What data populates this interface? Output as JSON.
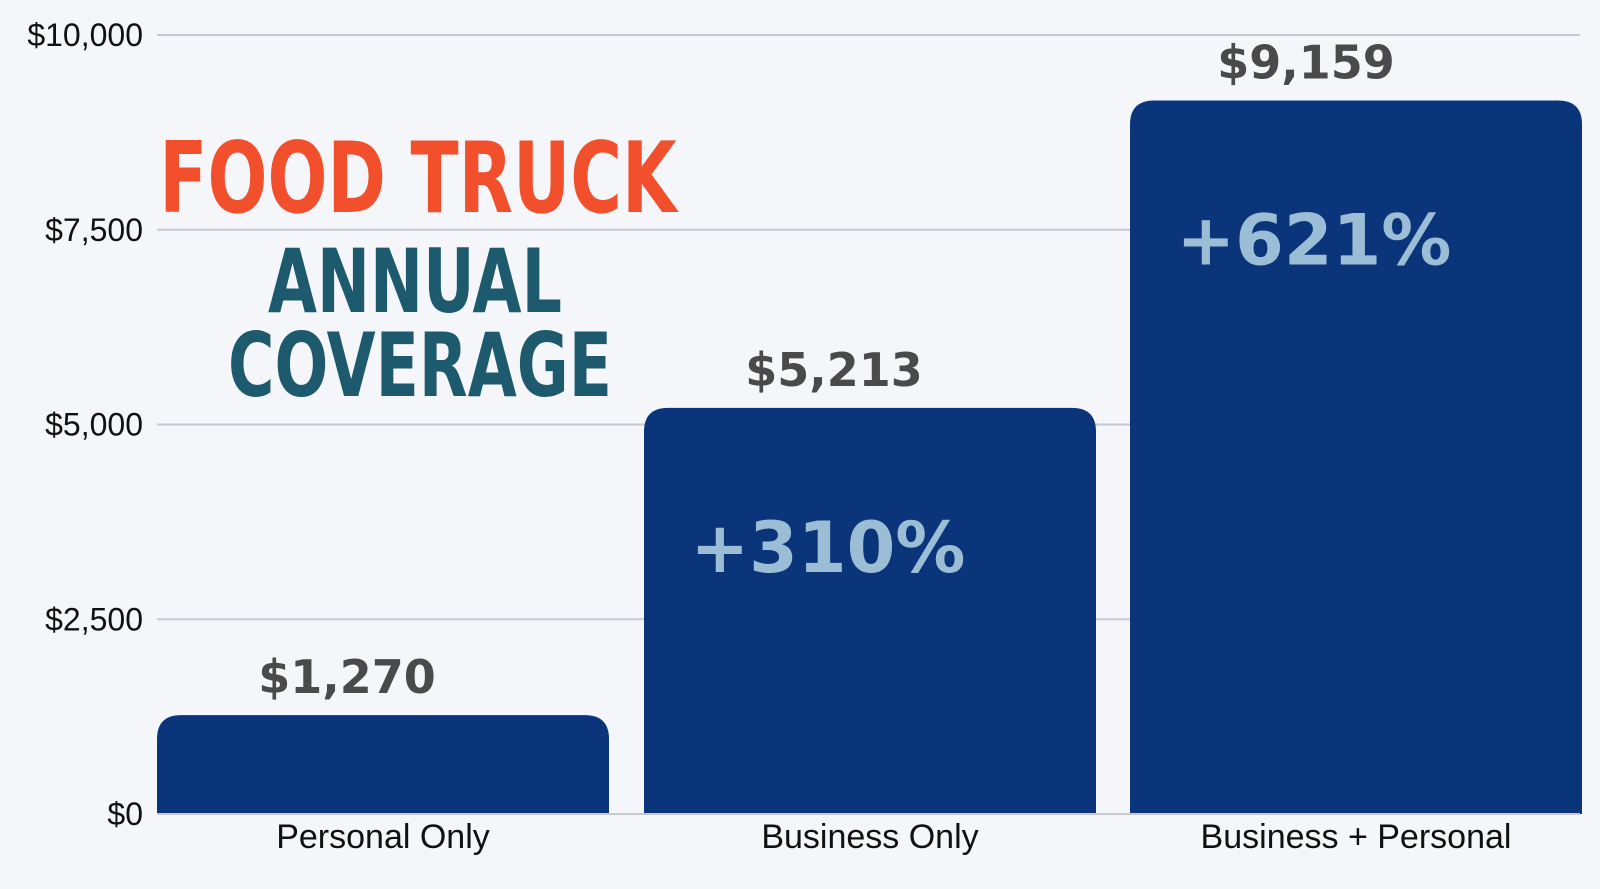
{
  "title": {
    "line1": "FOOD TRUCK",
    "line2": "ANNUAL",
    "line3": "COVERAGE"
  },
  "colors": {
    "bar": "#0a357a",
    "title_accent": "#f24f2c",
    "title_secondary": "#1e5a6e",
    "percent_text": "#9bbdd6",
    "gridline": "#c8c9d0"
  },
  "chart_data": {
    "type": "bar",
    "categories": [
      "Personal Only",
      "Business Only",
      "Business + Personal"
    ],
    "values": [
      1270,
      5213,
      9159
    ],
    "value_labels": [
      "$1,270",
      "$5,213",
      "$9,159"
    ],
    "percent_labels": [
      "",
      "+310%",
      "+621%"
    ],
    "ylim": [
      0,
      10000
    ],
    "yticks": [
      0,
      2500,
      5000,
      7500,
      10000
    ],
    "ytick_labels": [
      "$0",
      "$2,500",
      "$5,000",
      "$7,500",
      "$10,000"
    ],
    "grid": true,
    "legend": "none"
  }
}
